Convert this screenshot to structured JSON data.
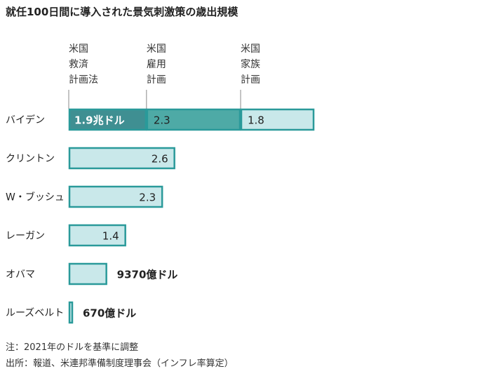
{
  "title": "就任100日間に導入された景気刺激策の歳出規模",
  "plan_labels": [
    {
      "lines": [
        "米国",
        "救済",
        "計画法"
      ]
    },
    {
      "lines": [
        "米国",
        "雇用",
        "計画"
      ]
    },
    {
      "lines": [
        "米国",
        "家族",
        "計画"
      ]
    }
  ],
  "notes": [
    "注：2021年のドルを基準に調整",
    "出所：報道、米連邦準備制度理事会（インフレ率算定）"
  ],
  "colors": {
    "dark": "#3f8f92",
    "mid": "#4eaaa6",
    "light": "#c9e8ea",
    "border": "#2a9a9a",
    "text": "#222222"
  },
  "chart_data": {
    "type": "bar",
    "orientation": "horizontal",
    "unit": "兆ドル",
    "categories": [
      "バイデン",
      "クリントン",
      "W・ブッシュ",
      "レーガン",
      "オバマ",
      "ルーズベルト"
    ],
    "bars": [
      {
        "category": "バイデン",
        "segments": [
          {
            "plan": "米国救済計画法",
            "value": 1.9,
            "label": "1.9兆ドル",
            "style": "dark"
          },
          {
            "plan": "米国雇用計画",
            "value": 2.3,
            "label": "2.3",
            "style": "mid"
          },
          {
            "plan": "米国家族計画",
            "value": 1.8,
            "label": "1.8",
            "style": "light"
          }
        ]
      },
      {
        "category": "クリントン",
        "segments": [
          {
            "value": 2.6,
            "label": "2.6",
            "style": "light"
          }
        ]
      },
      {
        "category": "W・ブッシュ",
        "segments": [
          {
            "value": 2.3,
            "label": "2.3",
            "style": "light"
          }
        ]
      },
      {
        "category": "レーガン",
        "segments": [
          {
            "value": 1.4,
            "label": "1.4",
            "style": "light"
          }
        ]
      },
      {
        "category": "オバマ",
        "segments": [
          {
            "value": 0.937,
            "label": "9370億ドル",
            "style": "light",
            "label_outside": true
          }
        ]
      },
      {
        "category": "ルーズベルト",
        "segments": [
          {
            "value": 0.067,
            "label": "670億ドル",
            "style": "light",
            "label_outside": true
          }
        ]
      }
    ],
    "xlim": [
      0,
      6.0
    ]
  }
}
